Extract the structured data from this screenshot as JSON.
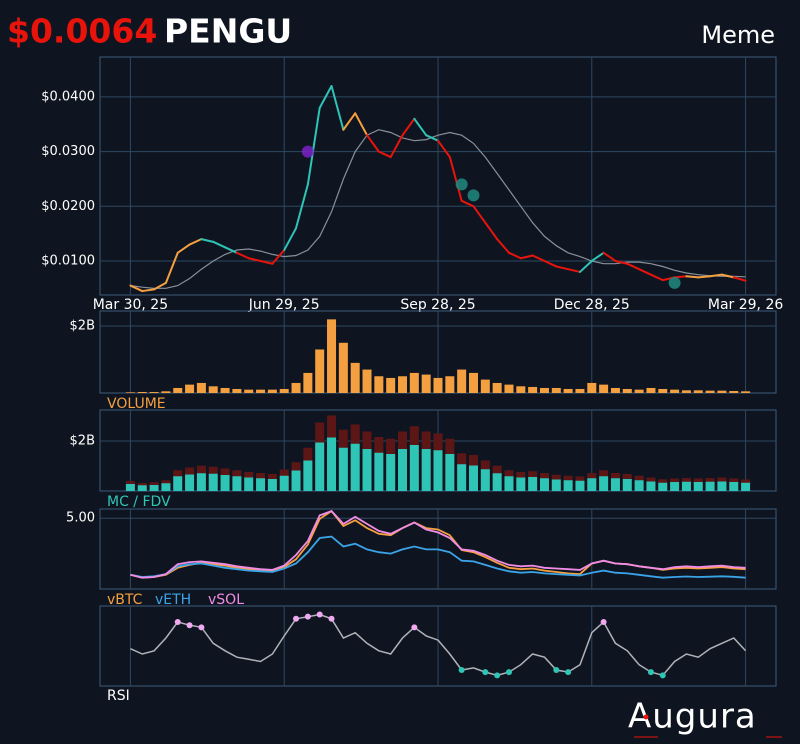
{
  "header": {
    "price": "$0.0064",
    "ticker": "PENGU",
    "category": "Meme"
  },
  "logo": "Augura",
  "chart_data": [
    {
      "type": "line",
      "x": [
        "2025-03-30",
        "2025-04-06",
        "2025-04-13",
        "2025-04-20",
        "2025-04-27",
        "2025-05-04",
        "2025-05-11",
        "2025-05-18",
        "2025-05-25",
        "2025-06-01",
        "2025-06-08",
        "2025-06-15",
        "2025-06-22",
        "2025-06-29",
        "2025-07-06",
        "2025-07-13",
        "2025-07-20",
        "2025-07-27",
        "2025-08-03",
        "2025-08-10",
        "2025-08-17",
        "2025-08-24",
        "2025-08-31",
        "2025-09-07",
        "2025-09-14",
        "2025-09-21",
        "2025-09-28",
        "2025-10-05",
        "2025-10-12",
        "2025-10-19",
        "2025-10-26",
        "2025-11-02",
        "2025-11-09",
        "2025-11-16",
        "2025-11-23",
        "2025-11-30",
        "2025-12-07",
        "2025-12-14",
        "2025-12-21",
        "2025-12-28",
        "2026-01-04",
        "2026-01-11",
        "2026-01-18",
        "2026-01-25",
        "2026-02-01",
        "2026-02-08",
        "2026-02-15",
        "2026-02-22",
        "2026-03-01",
        "2026-03-08",
        "2026-03-15",
        "2026-03-22",
        "2026-03-29"
      ],
      "xlim": [
        "2025-03-12",
        "2026-04-16"
      ],
      "xticks": [
        {
          "value": "2025-03-30",
          "label": "Mar 30, 25"
        },
        {
          "value": "2025-06-29",
          "label": "Jun 29, 25"
        },
        {
          "value": "2025-09-28",
          "label": "Sep 28, 25"
        },
        {
          "value": "2025-12-28",
          "label": "Dec 28, 25"
        },
        {
          "value": "2026-03-29",
          "label": "Mar 29, 26"
        }
      ],
      "ylim": [
        0.00378,
        0.0473
      ],
      "yticks": [
        {
          "value": 0.01,
          "label": "$0.0100"
        },
        {
          "value": 0.02,
          "label": "$0.0200"
        },
        {
          "value": 0.03,
          "label": "$0.0300"
        },
        {
          "value": 0.04,
          "label": "$0.0400"
        }
      ],
      "grid": true,
      "series": [
        {
          "color": "#8a9099",
          "values": [
            0.0055,
            0.0052,
            0.005,
            0.005,
            0.0055,
            0.0068,
            0.0085,
            0.01,
            0.0112,
            0.012,
            0.0122,
            0.0118,
            0.0112,
            0.0108,
            0.011,
            0.012,
            0.0145,
            0.019,
            0.025,
            0.03,
            0.033,
            0.034,
            0.0335,
            0.0325,
            0.032,
            0.0322,
            0.033,
            0.0335,
            0.033,
            0.0315,
            0.029,
            0.026,
            0.023,
            0.02,
            0.017,
            0.0145,
            0.0128,
            0.0115,
            0.0108,
            0.01,
            0.0095,
            0.0095,
            0.0098,
            0.0098,
            0.0095,
            0.009,
            0.0083,
            0.0078,
            0.0075,
            0.0073,
            0.0072,
            0.0072,
            0.0071
          ]
        },
        {
          "colors": [
            "#f5a040",
            "#f5a040",
            "#f5a040",
            "#f5a040",
            "#f5a040",
            "#f5a040",
            "#f5a040",
            "#2ec4b6",
            "#2ec4b6",
            "#2ec4b6",
            "#e8140c",
            "#e8140c",
            "#e8140c",
            "#e8140c",
            "#2ec4b6",
            "#2ec4b6",
            "#2ec4b6",
            "#2ec4b6",
            "#2ec4b6",
            "#f5a040",
            "#f5a040",
            "#e8140c",
            "#e8140c",
            "#e8140c",
            "#e8140c",
            "#2ec4b6",
            "#2ec4b6",
            "#e8140c",
            "#e8140c",
            "#e8140c",
            "#e8140c",
            "#e8140c",
            "#e8140c",
            "#e8140c",
            "#e8140c",
            "#e8140c",
            "#e8140c",
            "#e8140c",
            "#e8140c",
            "#2ec4b6",
            "#2ec4b6",
            "#e8140c",
            "#e8140c",
            "#e8140c",
            "#e8140c",
            "#e8140c",
            "#e8140c",
            "#e8140c",
            "#f5a040",
            "#f5a040",
            "#f5a040",
            "#f5a040",
            "#e8140c"
          ],
          "values": [
            0.0055,
            0.0045,
            0.0048,
            0.006,
            0.0115,
            0.013,
            0.014,
            0.0135,
            0.0125,
            0.0115,
            0.0105,
            0.01,
            0.0095,
            0.012,
            0.016,
            0.024,
            0.038,
            0.042,
            0.034,
            0.037,
            0.033,
            0.03,
            0.029,
            0.033,
            0.036,
            0.033,
            0.032,
            0.029,
            0.021,
            0.02,
            0.017,
            0.014,
            0.0115,
            0.0105,
            0.011,
            0.01,
            0.009,
            0.0085,
            0.008,
            0.01,
            0.0115,
            0.01,
            0.0095,
            0.0085,
            0.0075,
            0.0065,
            0.007,
            0.0072,
            0.007,
            0.0072,
            0.0075,
            0.007,
            0.0064
          ]
        }
      ],
      "markers": {
        "x": [
          "2025-07-13",
          "2025-10-12",
          "2025-10-19",
          "2026-02-15"
        ],
        "values": [
          0.03,
          0.024,
          0.022,
          0.006
        ],
        "colors": [
          "#7a22c8",
          "#1f8a80",
          "#1f8a80",
          "#1f8a80"
        ]
      }
    },
    {
      "type": "bar",
      "label": "VOLUME",
      "color": "#f5a040",
      "ylim": [
        0,
        2.45
      ],
      "yticks": [
        {
          "value": 2,
          "label": "$2B"
        }
      ],
      "values": [
        0.02,
        0.03,
        0.03,
        0.05,
        0.15,
        0.25,
        0.3,
        0.2,
        0.15,
        0.12,
        0.1,
        0.1,
        0.1,
        0.12,
        0.3,
        0.6,
        1.3,
        2.2,
        1.5,
        0.9,
        0.7,
        0.5,
        0.45,
        0.5,
        0.6,
        0.55,
        0.45,
        0.5,
        0.7,
        0.6,
        0.4,
        0.3,
        0.25,
        0.2,
        0.18,
        0.15,
        0.15,
        0.12,
        0.12,
        0.3,
        0.25,
        0.15,
        0.12,
        0.1,
        0.15,
        0.12,
        0.1,
        0.08,
        0.08,
        0.07,
        0.07,
        0.06,
        0.05
      ]
    },
    {
      "type": "bar",
      "label": "MC / FDV",
      "ylim": [
        0,
        3.24
      ],
      "yticks": [
        {
          "value": 2,
          "label": "$2B"
        }
      ],
      "series": [
        {
          "color": "#5c1616",
          "values": [
            0.4,
            0.32,
            0.35,
            0.43,
            0.83,
            0.94,
            1.01,
            0.97,
            0.9,
            0.83,
            0.76,
            0.72,
            0.68,
            0.86,
            1.15,
            1.73,
            2.74,
            3.02,
            2.45,
            2.66,
            2.38,
            2.16,
            2.09,
            2.38,
            2.59,
            2.38,
            2.3,
            2.09,
            1.51,
            1.44,
            1.22,
            1.01,
            0.83,
            0.76,
            0.79,
            0.72,
            0.65,
            0.61,
            0.58,
            0.72,
            0.83,
            0.72,
            0.68,
            0.61,
            0.54,
            0.47,
            0.5,
            0.52,
            0.5,
            0.52,
            0.54,
            0.5,
            0.46
          ]
        },
        {
          "color": "#2ec4b6",
          "values": [
            0.28,
            0.23,
            0.24,
            0.31,
            0.59,
            0.66,
            0.71,
            0.69,
            0.64,
            0.59,
            0.54,
            0.51,
            0.48,
            0.61,
            0.82,
            1.22,
            1.94,
            2.14,
            1.73,
            1.89,
            1.68,
            1.53,
            1.48,
            1.68,
            1.84,
            1.68,
            1.63,
            1.48,
            1.07,
            1.02,
            0.87,
            0.71,
            0.59,
            0.54,
            0.56,
            0.51,
            0.46,
            0.43,
            0.41,
            0.51,
            0.59,
            0.51,
            0.48,
            0.43,
            0.38,
            0.33,
            0.36,
            0.37,
            0.36,
            0.37,
            0.38,
            0.36,
            0.33
          ]
        }
      ]
    },
    {
      "type": "line",
      "ylim": [
        0,
        5.65
      ],
      "yticks": [
        {
          "value": 5,
          "label": "5.00"
        }
      ],
      "series": [
        {
          "name": "vBTC",
          "color": "#f5a040",
          "values": [
            1.0,
            0.8,
            0.85,
            1.0,
            1.5,
            1.7,
            1.85,
            1.75,
            1.65,
            1.5,
            1.4,
            1.3,
            1.25,
            1.55,
            2.1,
            3.15,
            4.95,
            5.5,
            4.45,
            4.85,
            4.3,
            3.9,
            3.8,
            4.3,
            4.7,
            4.3,
            4.2,
            3.8,
            2.75,
            2.6,
            2.25,
            1.85,
            1.5,
            1.4,
            1.45,
            1.3,
            1.2,
            1.1,
            1.05,
            1.8,
            2.0,
            1.8,
            1.75,
            1.6,
            1.5,
            1.35,
            1.45,
            1.5,
            1.45,
            1.5,
            1.55,
            1.45,
            1.4
          ]
        },
        {
          "name": "vETH",
          "color": "#3ba3e8",
          "values": [
            1.0,
            0.85,
            0.9,
            1.05,
            1.6,
            1.75,
            1.8,
            1.65,
            1.5,
            1.4,
            1.3,
            1.25,
            1.2,
            1.45,
            1.8,
            2.6,
            3.6,
            3.7,
            3.0,
            3.2,
            2.8,
            2.6,
            2.5,
            2.8,
            3.0,
            2.8,
            2.8,
            2.6,
            2.0,
            1.95,
            1.7,
            1.45,
            1.25,
            1.15,
            1.2,
            1.1,
            1.05,
            1.0,
            0.95,
            1.15,
            1.3,
            1.15,
            1.1,
            1.0,
            0.9,
            0.8,
            0.85,
            0.88,
            0.85,
            0.87,
            0.9,
            0.86,
            0.8
          ]
        },
        {
          "name": "vSOL",
          "color": "#f08ce6",
          "values": [
            1.0,
            0.8,
            0.85,
            1.05,
            1.75,
            1.9,
            1.95,
            1.85,
            1.75,
            1.6,
            1.5,
            1.4,
            1.35,
            1.65,
            2.4,
            3.4,
            5.2,
            5.5,
            4.6,
            5.1,
            4.6,
            4.1,
            3.9,
            4.3,
            4.7,
            4.2,
            4.0,
            3.6,
            2.8,
            2.7,
            2.4,
            2.0,
            1.7,
            1.6,
            1.65,
            1.5,
            1.45,
            1.4,
            1.35,
            1.8,
            2.0,
            1.8,
            1.75,
            1.6,
            1.5,
            1.4,
            1.55,
            1.6,
            1.55,
            1.6,
            1.65,
            1.55,
            1.5
          ]
        }
      ]
    },
    {
      "type": "rsi",
      "label": "RSI",
      "color": "#b0b4b8",
      "ylim": [
        15,
        90
      ],
      "overbought": 70,
      "oversold": 30,
      "high_color": "#f0a8f0",
      "low_color": "#2ec4b6",
      "values": [
        50,
        45,
        48,
        60,
        75,
        72,
        70,
        55,
        48,
        42,
        40,
        38,
        45,
        62,
        78,
        80,
        82,
        78,
        60,
        65,
        55,
        48,
        45,
        60,
        70,
        62,
        58,
        45,
        30,
        32,
        28,
        25,
        28,
        35,
        45,
        42,
        30,
        28,
        35,
        65,
        75,
        55,
        48,
        35,
        28,
        25,
        38,
        45,
        42,
        50,
        55,
        60,
        48
      ]
    }
  ]
}
